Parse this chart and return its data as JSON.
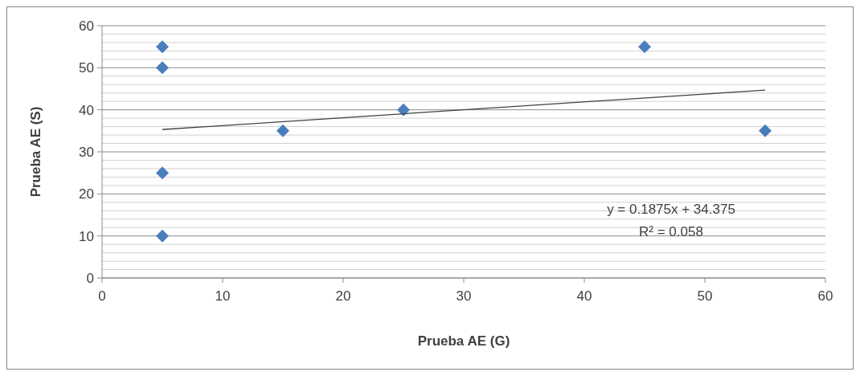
{
  "chart_data": {
    "type": "scatter",
    "xlabel": "Prueba AE (G)",
    "ylabel": "Prueba AE (S)",
    "xlim": [
      0,
      60
    ],
    "xticks": [
      0,
      10,
      20,
      30,
      40,
      50,
      60
    ],
    "ylim": [
      0,
      60
    ],
    "yticks": [
      0,
      {
        "value": 2,
        "label": null
      },
      {
        "value": 4,
        "label": null
      },
      {
        "value": 6,
        "label": null
      },
      {
        "value": 8,
        "label": null
      },
      10,
      {
        "value": 12,
        "label": null
      },
      {
        "value": 14,
        "label": null
      },
      {
        "value": 16,
        "label": null
      },
      {
        "value": 18,
        "label": null
      },
      20,
      {
        "value": 22,
        "label": null
      },
      {
        "value": 24,
        "label": null
      },
      {
        "value": 26,
        "label": null
      },
      {
        "value": 28,
        "label": null
      },
      30,
      {
        "value": 32,
        "label": null
      },
      {
        "value": 34,
        "label": null
      },
      {
        "value": 36,
        "label": null
      },
      {
        "value": 38,
        "label": null
      },
      40,
      {
        "value": 42,
        "label": null
      },
      {
        "value": 44,
        "label": null
      },
      {
        "value": 46,
        "label": null
      },
      {
        "value": 48,
        "label": null
      },
      50,
      {
        "value": 52,
        "label": null
      },
      {
        "value": 54,
        "label": null
      },
      {
        "value": 56,
        "label": null
      },
      {
        "value": 58,
        "label": null
      },
      60
    ],
    "grid": "y",
    "series": [
      {
        "marker": "diamond",
        "color": "#4a7ebb",
        "x": [
          5,
          5,
          5,
          5,
          15,
          25,
          45,
          55
        ],
        "values": [
          55,
          50,
          25,
          10,
          35,
          40,
          55,
          35
        ]
      },
      {
        "type": "line",
        "color": "#404040",
        "x": [
          5,
          55
        ],
        "values": [
          35.3,
          44.7
        ]
      }
    ],
    "annotations": [
      "y = 0.1875x + 34.375",
      "R² = 0.058"
    ]
  }
}
